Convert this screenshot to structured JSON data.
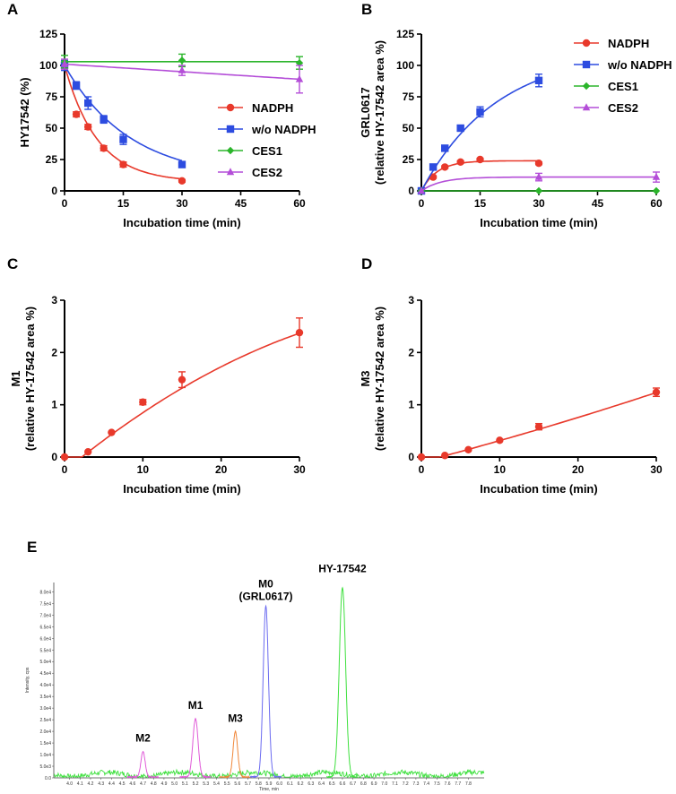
{
  "chart_data": [
    {
      "panel": "A",
      "type": "line",
      "title": "",
      "xlabel": "Incubation time (min)",
      "ylabel": "HY17542 (%)",
      "xlim": [
        0,
        60
      ],
      "ylim": [
        0,
        125
      ],
      "xticks": [
        "0",
        "15",
        "30",
        "45",
        "60"
      ],
      "yticks": [
        "0",
        "25",
        "50",
        "75",
        "100",
        "125"
      ],
      "legend_position": "right-middle",
      "series": [
        {
          "name": "NADPH",
          "color": "#e8392b",
          "marker": "circle",
          "x": [
            0,
            3,
            6,
            10,
            15,
            30
          ],
          "y": [
            100,
            61,
            51,
            34,
            21,
            8
          ],
          "err": [
            2,
            2,
            2,
            2,
            2,
            1
          ],
          "fit": "exp-decay",
          "k": 0.12,
          "plateau": 7
        },
        {
          "name": "w/o NADPH",
          "color": "#2d4ce0",
          "marker": "square",
          "x": [
            0,
            3,
            6,
            10,
            15,
            30
          ],
          "y": [
            100,
            84,
            70,
            57,
            41,
            21
          ],
          "err": [
            4,
            3,
            5,
            3,
            4,
            2
          ],
          "fit": "exp-decay",
          "k": 0.06,
          "plateau": 9
        },
        {
          "name": "CES1",
          "color": "#2bb52b",
          "marker": "diamond",
          "x": [
            0,
            30,
            60
          ],
          "y": [
            103,
            104,
            102
          ],
          "err": [
            5,
            5,
            5
          ],
          "fit": "flat"
        },
        {
          "name": "CES2",
          "color": "#b44ed8",
          "marker": "triangle",
          "x": [
            0,
            30,
            60
          ],
          "y": [
            101,
            96,
            89
          ],
          "err": [
            4,
            4,
            11
          ],
          "fit": "linear"
        }
      ]
    },
    {
      "panel": "B",
      "type": "line",
      "title": "",
      "xlabel": "Incubation time (min)",
      "ylabel": "GRL0617",
      "ylabel2": "(relative HY-17542 area %)",
      "xlim": [
        0,
        60
      ],
      "ylim": [
        0,
        125
      ],
      "xticks": [
        "0",
        "15",
        "30",
        "45",
        "60"
      ],
      "yticks": [
        "0",
        "25",
        "50",
        "75",
        "100",
        "125"
      ],
      "legend_position": "top-right",
      "series": [
        {
          "name": "NADPH",
          "color": "#e8392b",
          "marker": "circle",
          "x": [
            0,
            3,
            6,
            10,
            15,
            30
          ],
          "y": [
            0,
            11,
            19,
            23,
            25,
            22
          ],
          "err": [
            0,
            1,
            1,
            1,
            1,
            1
          ],
          "fit": "exp-rise",
          "k": 0.25,
          "plateau": 24
        },
        {
          "name": "w/o NADPH",
          "color": "#2d4ce0",
          "marker": "square",
          "x": [
            0,
            3,
            6,
            10,
            15,
            30
          ],
          "y": [
            0,
            19,
            34,
            50,
            63,
            88
          ],
          "err": [
            0,
            2,
            2,
            2,
            4,
            5
          ],
          "fit": "exp-rise",
          "k": 0.052,
          "plateau": 112
        },
        {
          "name": "CES1",
          "color": "#2bb52b",
          "marker": "diamond",
          "x": [
            0,
            30,
            60
          ],
          "y": [
            0,
            0,
            0
          ],
          "err": [
            0,
            0,
            0
          ],
          "fit": "flat"
        },
        {
          "name": "CES2",
          "color": "#b44ed8",
          "marker": "triangle",
          "x": [
            0,
            30,
            60
          ],
          "y": [
            0,
            11,
            11
          ],
          "err": [
            0,
            3,
            4
          ],
          "fit": "exp-rise",
          "k": 0.2,
          "plateau": 11
        }
      ]
    },
    {
      "panel": "C",
      "type": "line",
      "title": "",
      "xlabel": "Incubation time (min)",
      "ylabel": "M1",
      "ylabel2": "(relative HY-17542 area %)",
      "xlim": [
        0,
        30
      ],
      "ylim": [
        0,
        3
      ],
      "xticks": [
        "0",
        "10",
        "20",
        "30"
      ],
      "yticks": [
        "0",
        "1",
        "2",
        "3"
      ],
      "series": [
        {
          "name": "M1",
          "color": "#e8392b",
          "marker": "circle",
          "x": [
            0,
            3,
            6,
            10,
            15,
            30
          ],
          "y": [
            0,
            0.1,
            0.47,
            1.05,
            1.48,
            2.38
          ],
          "err": [
            0,
            0,
            0,
            0.05,
            0.15,
            0.28
          ],
          "fit": "curve"
        }
      ]
    },
    {
      "panel": "D",
      "type": "line",
      "title": "",
      "xlabel": "Incubation time (min)",
      "ylabel": "M3",
      "ylabel2": "(relative HY-17542 area %)",
      "xlim": [
        0,
        30
      ],
      "ylim": [
        0,
        3
      ],
      "xticks": [
        "0",
        "10",
        "20",
        "30"
      ],
      "yticks": [
        "0",
        "1",
        "2",
        "3"
      ],
      "series": [
        {
          "name": "M3",
          "color": "#e8392b",
          "marker": "circle",
          "x": [
            0,
            3,
            6,
            10,
            15,
            30
          ],
          "y": [
            0,
            0.03,
            0.14,
            0.32,
            0.58,
            1.24
          ],
          "err": [
            0,
            0,
            0,
            0,
            0.06,
            0.08
          ],
          "fit": "linear-ish"
        }
      ]
    },
    {
      "panel": "E",
      "type": "line",
      "title": "",
      "xlabel": "Time, min",
      "ylabel": "Intensity, cps",
      "xlim": [
        3.85,
        7.95
      ],
      "ylim": [
        0,
        84000
      ],
      "xticks": [
        "4.0",
        "4.1",
        "4.2",
        "4.3",
        "4.4",
        "4.5",
        "4.6",
        "4.7",
        "4.8",
        "4.9",
        "5.0",
        "5.1",
        "5.2",
        "5.3",
        "5.4",
        "5.5",
        "5.6",
        "5.7",
        "5.8",
        "5.9",
        "6.0",
        "6.1",
        "6.2",
        "6.3",
        "6.4",
        "6.5",
        "6.6",
        "6.7",
        "6.8",
        "6.9",
        "7.0",
        "7.1",
        "7.2",
        "7.3",
        "7.4",
        "7.5",
        "7.6",
        "7.7",
        "7.8"
      ],
      "yticks": [
        "0.0",
        "5.0e3",
        "1.0e4",
        "1.5e4",
        "2.0e4",
        "2.5e4",
        "3.0e4",
        "3.5e4",
        "4.0e4",
        "4.5e4",
        "5.0e4",
        "5.5e4",
        "6.0e4",
        "6.5e4",
        "7.0e4",
        "7.5e4",
        "8.0e4"
      ],
      "peaks": [
        {
          "name": "M2",
          "label": "M2",
          "color": "#e05bd8",
          "rt": 4.7,
          "height": 11000,
          "width": 0.02
        },
        {
          "name": "M1",
          "label": "M1",
          "color": "#e05bd8",
          "rt": 5.2,
          "height": 25000,
          "width": 0.025
        },
        {
          "name": "M3",
          "label": "M3",
          "color": "#f0873a",
          "rt": 5.58,
          "height": 19500,
          "width": 0.022
        },
        {
          "name": "M0",
          "label": "M0",
          "label2": "(GRL0617)",
          "color": "#6b6bf0",
          "rt": 5.87,
          "height": 73500,
          "width": 0.025
        },
        {
          "name": "HY-17542",
          "label": "HY-17542",
          "color": "#3ee03e",
          "rt": 6.6,
          "height": 81500,
          "width": 0.03
        }
      ],
      "baseline_color": "#3ee03e",
      "baseline_level": 1500
    }
  ]
}
